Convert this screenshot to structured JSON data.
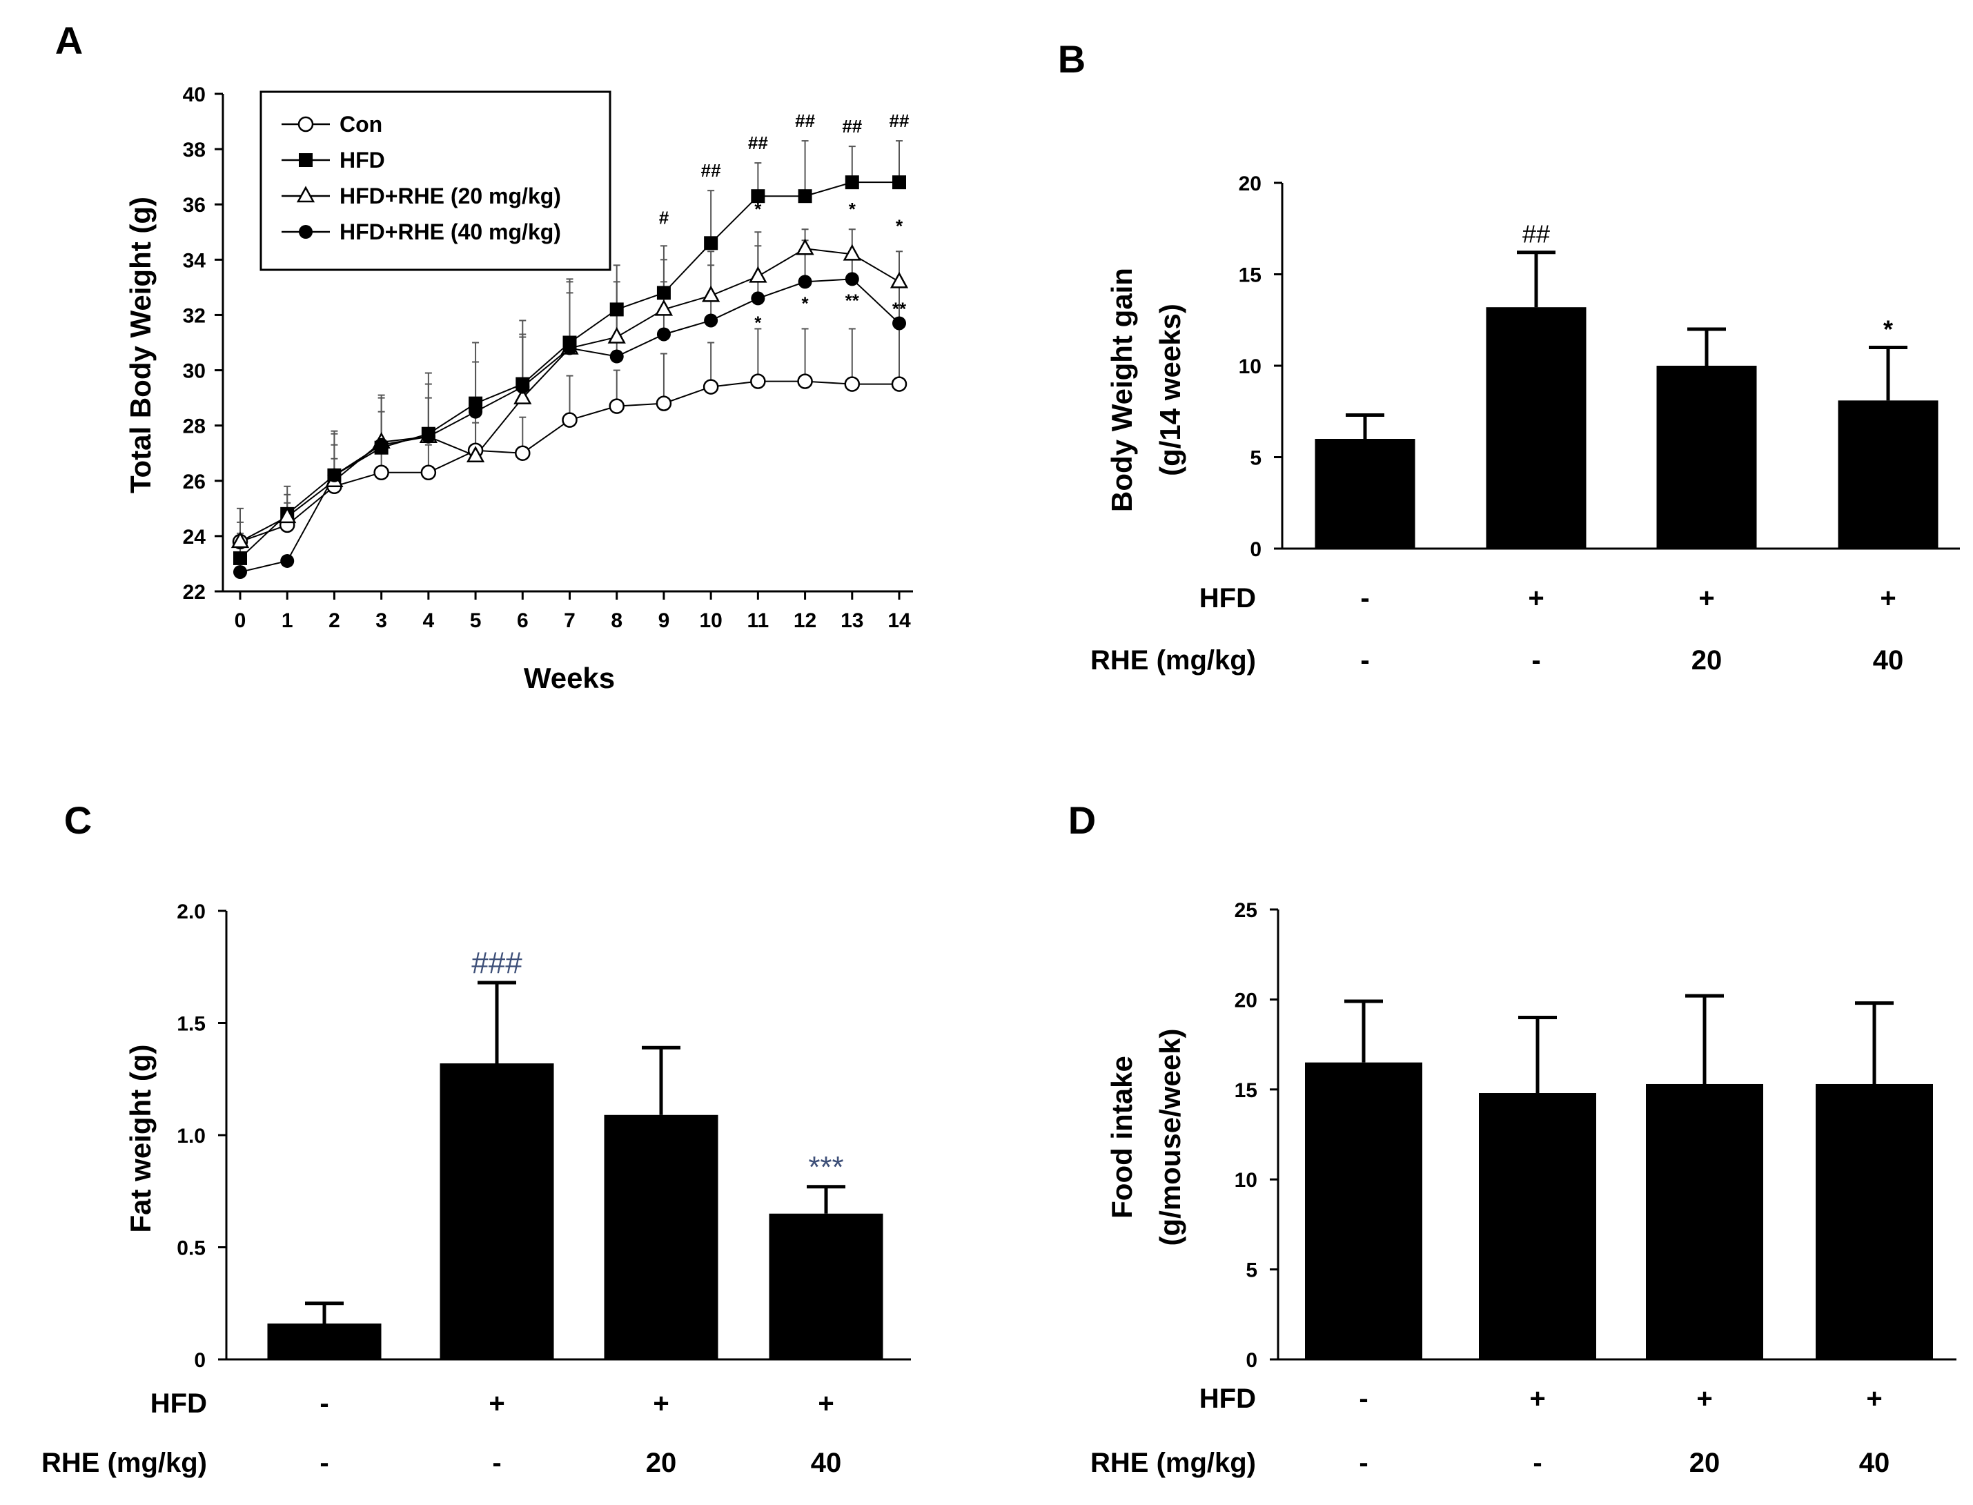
{
  "chart_data": [
    {
      "panel": "A",
      "type": "line",
      "title": "",
      "xlabel": "Weeks",
      "ylabel": "Total Body Weight (g)",
      "xlim": [
        0,
        14
      ],
      "ylim": [
        22,
        40
      ],
      "x_ticks": [
        0,
        1,
        2,
        3,
        4,
        5,
        6,
        7,
        8,
        9,
        10,
        11,
        12,
        13,
        14
      ],
      "y_ticks": [
        22,
        24,
        26,
        28,
        30,
        32,
        34,
        36,
        38,
        40
      ],
      "grid": false,
      "legend_position": "top-left",
      "x": [
        0,
        1,
        2,
        3,
        4,
        5,
        6,
        7,
        8,
        9,
        10,
        11,
        12,
        13,
        14
      ],
      "series": [
        {
          "name": "Con",
          "marker": "open-circle",
          "values": [
            23.8,
            24.4,
            25.8,
            26.3,
            26.3,
            27.1,
            27.0,
            28.2,
            28.7,
            28.8,
            29.4,
            29.6,
            29.6,
            29.5,
            29.5
          ],
          "errors": [
            1.2,
            0.8,
            1.0,
            1.0,
            1.0,
            1.0,
            1.3,
            1.6,
            1.3,
            1.8,
            1.6,
            1.9,
            1.9,
            2.0,
            2.0
          ]
        },
        {
          "name": "HFD",
          "marker": "filled-square",
          "values": [
            23.2,
            24.8,
            26.2,
            27.2,
            27.7,
            28.8,
            29.5,
            31.0,
            32.2,
            32.8,
            34.6,
            36.3,
            36.3,
            36.8,
            36.8
          ],
          "errors": [
            0.9,
            1.0,
            1.6,
            1.9,
            2.2,
            2.2,
            2.3,
            2.3,
            1.6,
            1.7,
            1.9,
            1.2,
            2.0,
            1.3,
            1.5
          ]
        },
        {
          "name": "HFD+RHE (20 mg/kg)",
          "marker": "open-triangle",
          "values": [
            23.8,
            24.7,
            26.0,
            27.4,
            27.6,
            26.9,
            29.0,
            30.8,
            31.2,
            32.2,
            32.7,
            33.4,
            34.4,
            34.2,
            33.2
          ],
          "errors": [
            0.7,
            0.8,
            1.7,
            1.6,
            1.9,
            1.6,
            2.2,
            2.4,
            2.0,
            1.8,
            1.6,
            1.6,
            0.7,
            0.9,
            1.1
          ]
        },
        {
          "name": "HFD+RHE (40 mg/kg)",
          "marker": "filled-circle",
          "values": [
            22.7,
            23.1,
            26.2,
            27.3,
            27.6,
            28.5,
            29.4,
            30.8,
            30.5,
            31.3,
            31.8,
            32.6,
            33.2,
            33.3,
            31.7
          ],
          "errors": [
            0,
            0,
            1.1,
            1.2,
            1.4,
            1.8,
            1.9,
            2.0,
            1.9,
            1.9,
            2.0,
            1.9,
            1.5,
            1.0,
            1.3
          ]
        }
      ],
      "annotations": [
        {
          "x": 9,
          "y": 35.3,
          "text": "#"
        },
        {
          "x": 10,
          "y": 37.0,
          "text": "##"
        },
        {
          "x": 11,
          "y": 38.0,
          "text": "##"
        },
        {
          "x": 12,
          "y": 38.8,
          "text": "##"
        },
        {
          "x": 13,
          "y": 38.6,
          "text": "##"
        },
        {
          "x": 14,
          "y": 38.8,
          "text": "##"
        },
        {
          "x": 11,
          "y": 35.6,
          "text": "*"
        },
        {
          "x": 11,
          "y": 31.5,
          "text": "*"
        },
        {
          "x": 12,
          "y": 32.2,
          "text": "*"
        },
        {
          "x": 13,
          "y": 35.6,
          "text": "*"
        },
        {
          "x": 13,
          "y": 32.3,
          "text": "**"
        },
        {
          "x": 14,
          "y": 35.0,
          "text": "*"
        },
        {
          "x": 14,
          "y": 32.0,
          "text": "**"
        }
      ],
      "legend_labels": [
        "Con",
        "HFD",
        "HFD+RHE (20 mg/kg)",
        "HFD+RHE (40 mg/kg)"
      ]
    },
    {
      "panel": "B",
      "type": "bar",
      "title": "",
      "xlabel": "",
      "ylabel": "Body Weight gain (g/14 weeks)",
      "ylabel_lines": [
        "Body Weight gain",
        "(g/14 weeks)"
      ],
      "ylim": [
        0,
        20
      ],
      "y_ticks": [
        0,
        5,
        10,
        15,
        20
      ],
      "grid": false,
      "values": [
        6.0,
        13.2,
        10.0,
        8.1
      ],
      "errors": [
        1.3,
        3.0,
        2.0,
        2.9
      ],
      "annotations": [
        "",
        "##",
        "",
        "*"
      ],
      "annotation_color": "#000000",
      "rows": [
        {
          "label": "HFD",
          "values": [
            "-",
            "+",
            "+",
            "+"
          ]
        },
        {
          "label": "RHE (mg/kg)",
          "values": [
            "-",
            "-",
            "20",
            "40"
          ]
        }
      ]
    },
    {
      "panel": "C",
      "type": "bar",
      "title": "",
      "xlabel": "",
      "ylabel": "Fat weight (g)",
      "ylabel_lines": [
        "Fat weight (g)"
      ],
      "ylim": [
        0,
        2.0
      ],
      "y_ticks": [
        0,
        0.5,
        1.0,
        1.5,
        2.0
      ],
      "y_tick_labels": [
        "0",
        "0.5",
        "1.0",
        "1.5",
        "2.0"
      ],
      "grid": false,
      "values": [
        0.16,
        1.32,
        1.09,
        0.65
      ],
      "errors": [
        0.09,
        0.36,
        0.3,
        0.12
      ],
      "annotations": [
        "",
        "###",
        "",
        "***"
      ],
      "annotation_color": "#3d4f78",
      "rows": [
        {
          "label": "HFD",
          "values": [
            "-",
            "+",
            "+",
            "+"
          ]
        },
        {
          "label": "RHE (mg/kg)",
          "values": [
            "-",
            "-",
            "20",
            "40"
          ]
        }
      ]
    },
    {
      "panel": "D",
      "type": "bar",
      "title": "",
      "xlabel": "",
      "ylabel": "Food intake (g/mouse/week)",
      "ylabel_lines": [
        "Food intake",
        "(g/mouse/week)"
      ],
      "ylim": [
        0,
        25
      ],
      "y_ticks": [
        0,
        5,
        10,
        15,
        20,
        25
      ],
      "grid": false,
      "values": [
        16.5,
        14.8,
        15.3,
        15.3
      ],
      "errors": [
        3.4,
        4.2,
        4.9,
        4.5
      ],
      "annotations": [
        "",
        "",
        "",
        ""
      ],
      "annotation_color": "#000000",
      "rows": [
        {
          "label": "HFD",
          "values": [
            "-",
            "+",
            "+",
            "+"
          ]
        },
        {
          "label": "RHE (mg/kg)",
          "values": [
            "-",
            "-",
            "20",
            "40"
          ]
        }
      ]
    }
  ]
}
